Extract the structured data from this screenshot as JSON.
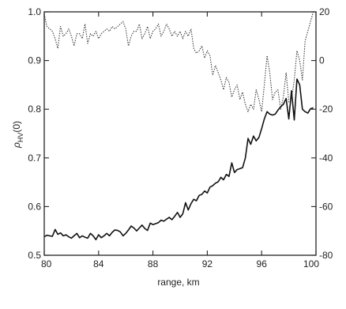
{
  "chart_data": {
    "type": "line",
    "title": "",
    "xlabel": "range, km",
    "ylabel_left": "ρ_HV(0)",
    "ylabel_right": "",
    "xlim": [
      80,
      100
    ],
    "ylim_left": [
      0.5,
      1.0
    ],
    "ylim_right": [
      -80,
      20
    ],
    "x_ticks": [
      80,
      84,
      88,
      92,
      96,
      100
    ],
    "y_left_ticks": [
      0.5,
      0.6,
      0.7,
      0.8,
      0.9,
      1.0
    ],
    "y_right_ticks": [
      -80,
      -60,
      -40,
      -20,
      0,
      20
    ],
    "x_tick_labels": [
      "80",
      "84",
      "88",
      "92",
      "96",
      "100"
    ],
    "y_left_tick_labels": [
      "0.5",
      "0.6",
      "0.7",
      "0.8",
      "0.9",
      "1.0"
    ],
    "y_right_tick_labels": [
      "-80",
      "-60",
      "-40",
      "-20",
      "0",
      "20"
    ],
    "grid": false,
    "series": [
      {
        "axis": "left",
        "style": "solid",
        "x": [
          80.0,
          80.2,
          80.4,
          80.6,
          80.8,
          81.0,
          81.2,
          81.4,
          81.6,
          81.8,
          82.0,
          82.2,
          82.4,
          82.6,
          82.8,
          83.0,
          83.2,
          83.4,
          83.6,
          83.8,
          84.0,
          84.2,
          84.4,
          84.6,
          84.8,
          85.0,
          85.2,
          85.4,
          85.6,
          85.8,
          86.0,
          86.2,
          86.4,
          86.6,
          86.8,
          87.0,
          87.2,
          87.4,
          87.6,
          87.8,
          88.0,
          88.2,
          88.4,
          88.6,
          88.8,
          89.0,
          89.2,
          89.4,
          89.6,
          89.8,
          90.0,
          90.2,
          90.4,
          90.6,
          90.8,
          91.0,
          91.2,
          91.4,
          91.6,
          91.8,
          92.0,
          92.2,
          92.4,
          92.6,
          92.8,
          93.0,
          93.2,
          93.4,
          93.6,
          93.8,
          94.0,
          94.2,
          94.4,
          94.6,
          94.8,
          95.0,
          95.2,
          95.4,
          95.6,
          95.8,
          96.0,
          96.2,
          96.4,
          96.6,
          96.8,
          97.0,
          97.2,
          97.4,
          97.6,
          97.8,
          98.0,
          98.2,
          98.4,
          98.6,
          98.8,
          99.0,
          99.2,
          99.4,
          99.6,
          99.8
        ],
        "values": [
          0.538,
          0.541,
          0.54,
          0.539,
          0.553,
          0.543,
          0.546,
          0.54,
          0.542,
          0.538,
          0.535,
          0.54,
          0.545,
          0.536,
          0.54,
          0.537,
          0.535,
          0.545,
          0.54,
          0.532,
          0.542,
          0.536,
          0.54,
          0.545,
          0.54,
          0.547,
          0.552,
          0.551,
          0.548,
          0.54,
          0.545,
          0.552,
          0.56,
          0.556,
          0.55,
          0.556,
          0.562,
          0.555,
          0.551,
          0.566,
          0.563,
          0.565,
          0.567,
          0.572,
          0.57,
          0.574,
          0.578,
          0.573,
          0.58,
          0.588,
          0.578,
          0.585,
          0.608,
          0.593,
          0.606,
          0.615,
          0.612,
          0.623,
          0.625,
          0.632,
          0.628,
          0.64,
          0.643,
          0.648,
          0.651,
          0.66,
          0.655,
          0.666,
          0.662,
          0.69,
          0.67,
          0.676,
          0.678,
          0.68,
          0.7,
          0.74,
          0.728,
          0.745,
          0.735,
          0.742,
          0.76,
          0.78,
          0.795,
          0.79,
          0.788,
          0.79,
          0.798,
          0.805,
          0.81,
          0.822,
          0.78,
          0.838,
          0.778,
          0.862,
          0.85,
          0.8,
          0.795,
          0.792,
          0.801,
          0.803
        ]
      },
      {
        "axis": "right",
        "style": "dotted",
        "x": [
          80.0,
          80.2,
          80.4,
          80.6,
          80.8,
          81.0,
          81.2,
          81.4,
          81.6,
          81.8,
          82.0,
          82.2,
          82.4,
          82.6,
          82.8,
          83.0,
          83.2,
          83.4,
          83.6,
          83.8,
          84.0,
          84.2,
          84.4,
          84.6,
          84.8,
          85.0,
          85.2,
          85.4,
          85.6,
          85.8,
          86.0,
          86.2,
          86.4,
          86.6,
          86.8,
          87.0,
          87.2,
          87.4,
          87.6,
          87.8,
          88.0,
          88.2,
          88.4,
          88.6,
          88.8,
          89.0,
          89.2,
          89.4,
          89.6,
          89.8,
          90.0,
          90.2,
          90.4,
          90.6,
          90.8,
          91.0,
          91.2,
          91.4,
          91.6,
          91.8,
          92.0,
          92.2,
          92.4,
          92.6,
          92.8,
          93.0,
          93.2,
          93.4,
          93.6,
          93.8,
          94.0,
          94.2,
          94.4,
          94.6,
          94.8,
          95.0,
          95.2,
          95.4,
          95.6,
          95.8,
          96.0,
          96.2,
          96.4,
          96.6,
          96.8,
          97.0,
          97.2,
          97.4,
          97.6,
          97.8,
          98.0,
          98.2,
          98.4,
          98.6,
          98.8,
          99.0,
          99.2,
          99.4,
          99.6,
          99.8
        ],
        "values": [
          19,
          14,
          13,
          12,
          9,
          5,
          14,
          10,
          11,
          13,
          10,
          6,
          11,
          11,
          9,
          15,
          7,
          11,
          10,
          12,
          9,
          11,
          12,
          13,
          12,
          14,
          13,
          14,
          15,
          16,
          13,
          6,
          10,
          12,
          12,
          15,
          9,
          11,
          14,
          9,
          12,
          13,
          15,
          10,
          12,
          15,
          13,
          10,
          12,
          10,
          12,
          9,
          12,
          10,
          13,
          5,
          3,
          4,
          6,
          1,
          4,
          2,
          -6,
          -2,
          -5,
          -8,
          -12,
          -7,
          -9,
          -15,
          -12,
          -10,
          -16,
          -13,
          -18,
          -21,
          -18,
          -20,
          -12,
          -16,
          -21,
          -10,
          2,
          -5,
          -16,
          -13,
          -12,
          -20,
          -15,
          -5,
          -17,
          -16,
          -8,
          4,
          0,
          -8,
          8,
          12,
          16,
          20
        ]
      }
    ]
  }
}
